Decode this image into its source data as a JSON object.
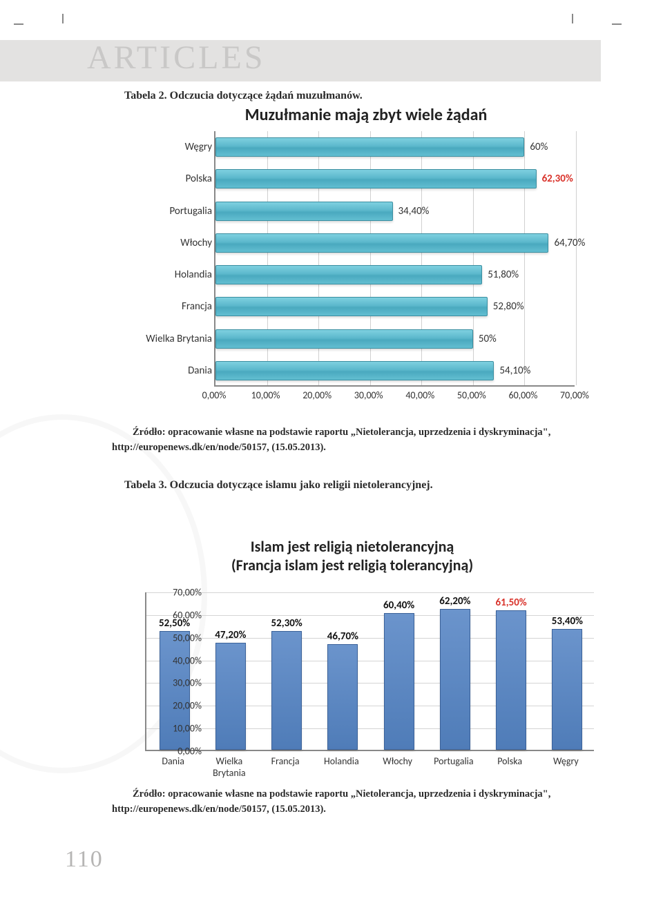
{
  "page": {
    "header": "ARTICLES",
    "page_number": "110"
  },
  "table2": {
    "caption": "Tabela 2. Odczucia dotyczące żądań muzułmanów.",
    "title": "Muzułmanie mają zbyt wiele żądań",
    "type": "bar_horizontal",
    "x_min": 0,
    "x_max": 70,
    "x_tick_step": 10,
    "x_tick_labels": [
      "0,00%",
      "10,00%",
      "20,00%",
      "30,00%",
      "40,00%",
      "50,00%",
      "60,00%",
      "70,00%"
    ],
    "bar_color_gradient": [
      "#7ed0e0",
      "#4aa9bf"
    ],
    "bar_border": "#3a8ea0",
    "axis_color": "#888888",
    "grid_color": "#d0d0d0",
    "highlight_color": "#d9322a",
    "value_fontsize": 15,
    "label_fontsize": 15,
    "rows": [
      {
        "label": "Węgry",
        "value": 60.0,
        "display": "60%",
        "highlight": false
      },
      {
        "label": "Polska",
        "value": 62.3,
        "display": "62,30%",
        "highlight": true
      },
      {
        "label": "Portugalia",
        "value": 34.4,
        "display": "34,40%",
        "highlight": false
      },
      {
        "label": "Włochy",
        "value": 64.7,
        "display": "64,70%",
        "highlight": false
      },
      {
        "label": "Holandia",
        "value": 51.8,
        "display": "51,80%",
        "highlight": false
      },
      {
        "label": "Francja",
        "value": 52.8,
        "display": "52,80%",
        "highlight": false
      },
      {
        "label": "Wielka Brytania",
        "value": 50.0,
        "display": "50%",
        "highlight": false
      },
      {
        "label": "Dania",
        "value": 54.1,
        "display": "54,10%",
        "highlight": false
      }
    ],
    "source": "Źródło: opracowanie własne na podstawie raportu „Nietolerancja, uprzedzenia i dyskryminacja\", http://europenews.dk/en/node/50157, (15.05.2013)."
  },
  "table3": {
    "caption": "Tabela 3. Odczucia dotyczące islamu jako religii nietolerancyjnej.",
    "title_line1": "Islam jest religią nietolerancyjną",
    "title_line2": "(Francja islam jest religią tolerancyjną)",
    "type": "bar_vertical",
    "y_min": 0,
    "y_max": 70,
    "y_tick_step": 10,
    "y_tick_labels": [
      "0,00%",
      "10,00%",
      "20,00%",
      "30,00%",
      "40,00%",
      "50,00%",
      "60,00%",
      "70,00%"
    ],
    "bar_color_gradient": [
      "#6b94cc",
      "#4f7cb8"
    ],
    "bar_border": "#3a6199",
    "axis_color": "#888888",
    "grid_color": "#d4d4d4",
    "highlight_color": "#d9322a",
    "value_fontsize": 15,
    "label_fontsize": 14,
    "columns": [
      {
        "label": "Dania",
        "value": 52.5,
        "display": "52,50%",
        "highlight": false
      },
      {
        "label": "Wielka Brytania",
        "value": 47.2,
        "display": "47,20%",
        "highlight": false
      },
      {
        "label": "Francja",
        "value": 52.3,
        "display": "52,30%",
        "highlight": false
      },
      {
        "label": "Holandia",
        "value": 46.7,
        "display": "46,70%",
        "highlight": false
      },
      {
        "label": "Włochy",
        "value": 60.4,
        "display": "60,40%",
        "highlight": false
      },
      {
        "label": "Portugalia",
        "value": 62.2,
        "display": "62,20%",
        "highlight": false
      },
      {
        "label": "Polska",
        "value": 61.5,
        "display": "61,50%",
        "highlight": true
      },
      {
        "label": "Węgry",
        "value": 53.4,
        "display": "53,40%",
        "highlight": false
      }
    ],
    "source": "Źródło: opracowanie własne na podstawie raportu „Nietolerancja, uprzedzenia i dyskryminacja\", http://europenews.dk/en/node/50157, (15.05.2013)."
  },
  "colors": {
    "page_bg": "#ffffff",
    "header_band": "#e3e2e1",
    "header_text": "#c9c8c7",
    "body_text": "#2a2a2a",
    "page_number": "#b6b5b4"
  },
  "typography": {
    "body_font": "Georgia, serif",
    "chart_font": "Calibri, Arial, sans-serif",
    "header_fontsize": 48,
    "caption_fontsize": 16,
    "chart1_title_fontsize": 24,
    "chart2_title_fontsize": 22,
    "pagenum_fontsize": 34
  }
}
